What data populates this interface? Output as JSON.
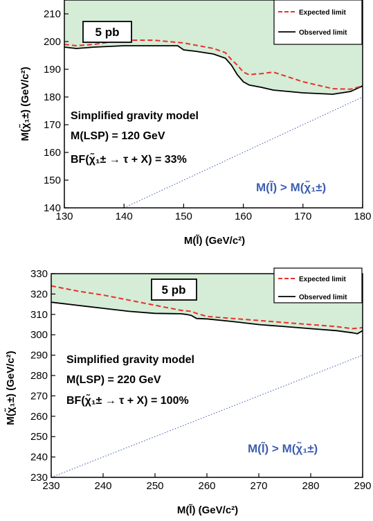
{
  "chart_data": [
    {
      "type": "line",
      "xlabel": "M(l̃) (GeV/c²)",
      "ylabel": "M(χ̃₁±) (GeV/c²)",
      "xlim": [
        130,
        180
      ],
      "ylim": [
        140,
        215
      ],
      "xticks": [
        130,
        140,
        150,
        160,
        170,
        180
      ],
      "yticks": [
        140,
        150,
        160,
        170,
        180,
        190,
        200,
        210
      ],
      "xsection_label": "5 pb",
      "legend": {
        "placement": "top-right",
        "entries": [
          "Expected limit",
          "Observed limit"
        ]
      },
      "annotations": [
        "Simplified gravity model",
        "M(LSP) = 120 GeV",
        "BF(χ̃₁± → τ + X) = 33%"
      ],
      "region_label": "M(l̃) > M(χ̃₁±)",
      "colors": {
        "expected": "#e8302a",
        "observed": "#000000",
        "fill": "#d5ecd7",
        "diagonal": "#3a56a8",
        "region_text": "#3e5eb0"
      },
      "series": [
        {
          "name": "Expected limit",
          "style": "dashed",
          "x": [
            130,
            132,
            135,
            140,
            145,
            150,
            155,
            157,
            158,
            159,
            160,
            161,
            162,
            163,
            165,
            170,
            175,
            178,
            180
          ],
          "y": [
            199,
            198.5,
            199,
            200.5,
            200.5,
            199.5,
            197.5,
            196,
            193.5,
            191.5,
            189,
            188,
            188.3,
            188.4,
            189,
            185.5,
            183,
            182.8,
            184
          ]
        },
        {
          "name": "Observed limit",
          "style": "solid",
          "x": [
            130,
            132,
            135,
            140,
            145,
            149,
            150,
            152,
            155,
            157,
            158,
            159,
            160,
            161,
            163,
            165,
            170,
            175,
            178,
            180
          ],
          "y": [
            198,
            197.5,
            198,
            198.5,
            198.5,
            198.5,
            197,
            196.5,
            195.5,
            194,
            191.5,
            188,
            185.5,
            184.3,
            183.5,
            182.5,
            181.5,
            181,
            182,
            184
          ]
        },
        {
          "name": "M(l̃) = M(χ̃₁±)",
          "style": "dotted",
          "x": [
            140,
            180
          ],
          "y": [
            140,
            180
          ]
        }
      ]
    },
    {
      "type": "line",
      "xlabel": "M(l̃) (GeV/c²)",
      "ylabel": "M(χ̃₁±) (GeV/c²)",
      "xlim": [
        230,
        290
      ],
      "ylim": [
        230,
        330
      ],
      "xticks": [
        230,
        240,
        250,
        260,
        270,
        280,
        290
      ],
      "yticks": [
        230,
        240,
        250,
        260,
        270,
        280,
        290,
        300,
        310,
        320,
        330
      ],
      "xsection_label": "5 pb",
      "legend": {
        "placement": "top-right",
        "entries": [
          "Expected limit",
          "Observed limit"
        ]
      },
      "annotations": [
        "Simplified gravity model",
        "M(LSP) = 220 GeV",
        "BF(χ̃₁± → τ + X) = 100%"
      ],
      "region_label": "M(l̃) > M(χ̃₁±)",
      "colors": {
        "expected": "#e8302a",
        "observed": "#000000",
        "fill": "#d5ecd7",
        "diagonal": "#3a56a8",
        "region_text": "#3e5eb0"
      },
      "series": [
        {
          "name": "Expected limit",
          "style": "dashed",
          "x": [
            230,
            235,
            240,
            245,
            250,
            255,
            257,
            258,
            260,
            265,
            270,
            275,
            280,
            285,
            288,
            290
          ],
          "y": [
            324,
            321.5,
            319.5,
            317,
            314.5,
            312,
            311.5,
            310.5,
            309,
            308,
            307,
            306,
            305,
            304,
            303,
            303.5
          ]
        },
        {
          "name": "Observed limit",
          "style": "solid",
          "x": [
            230,
            235,
            240,
            245,
            250,
            255,
            256,
            257,
            258,
            260,
            265,
            270,
            275,
            280,
            285,
            288,
            289,
            290
          ],
          "y": [
            316,
            314.5,
            313,
            311.5,
            310.5,
            310.3,
            310,
            309.5,
            308,
            307.8,
            306.5,
            305,
            304,
            303,
            302,
            301,
            300.5,
            302
          ]
        },
        {
          "name": "M(l̃) = M(χ̃₁±)",
          "style": "dotted",
          "x": [
            230,
            290
          ],
          "y": [
            230,
            290
          ]
        }
      ]
    }
  ]
}
